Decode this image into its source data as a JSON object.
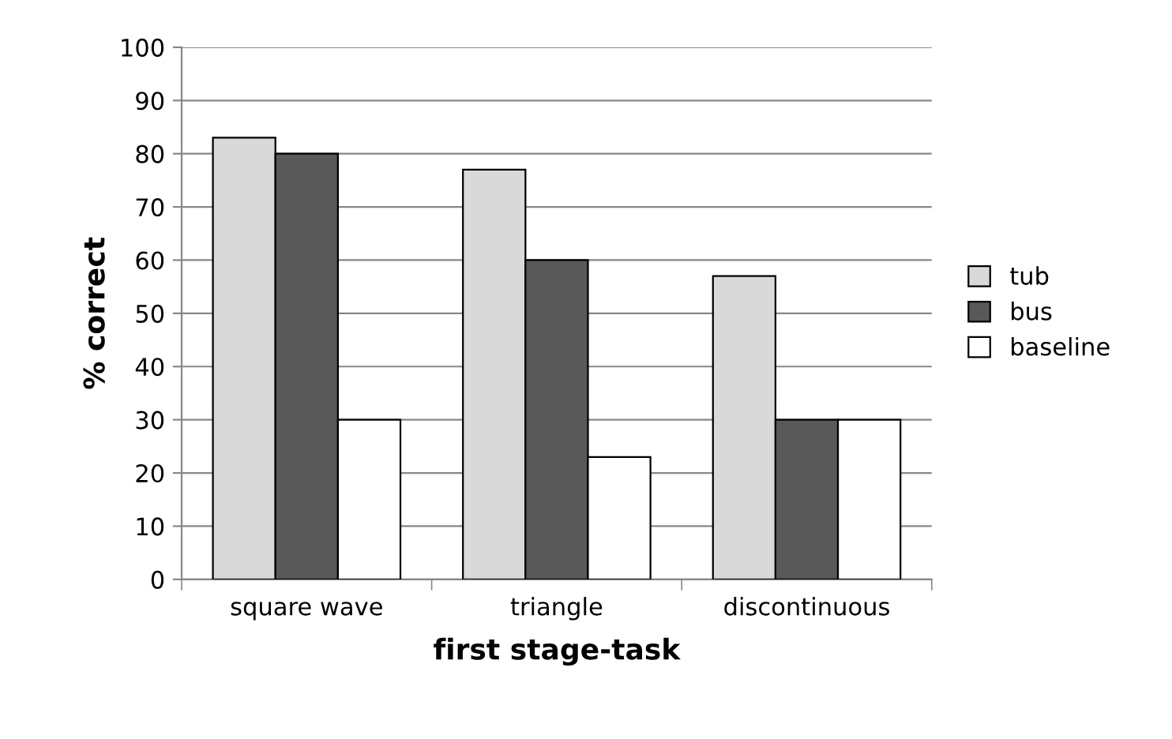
{
  "chart_data": {
    "type": "bar",
    "xlabel": "first stage-task",
    "ylabel": "% correct",
    "categories": [
      "square wave",
      "triangle",
      "discontinuous"
    ],
    "series": [
      {
        "name": "tub",
        "color": "#d9d9d9",
        "values": [
          83,
          77,
          57
        ]
      },
      {
        "name": "bus",
        "color": "#595959",
        "values": [
          80,
          60,
          30
        ]
      },
      {
        "name": "baseline",
        "color": "#ffffff",
        "values": [
          30,
          23,
          30
        ]
      }
    ],
    "ylim": [
      0,
      100
    ],
    "yticks": [
      0,
      10,
      20,
      30,
      40,
      50,
      60,
      70,
      80,
      90,
      100
    ],
    "grid": "y",
    "legend": "right"
  }
}
